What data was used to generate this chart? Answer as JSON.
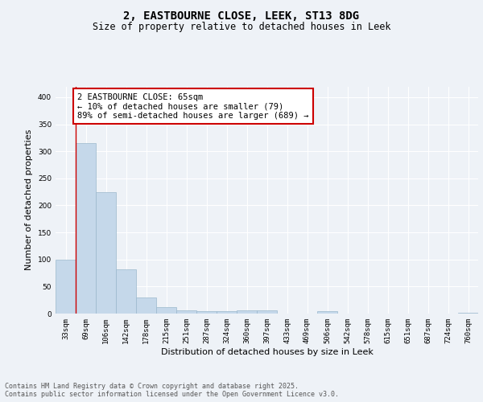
{
  "title_line1": "2, EASTBOURNE CLOSE, LEEK, ST13 8DG",
  "title_line2": "Size of property relative to detached houses in Leek",
  "xlabel": "Distribution of detached houses by size in Leek",
  "ylabel": "Number of detached properties",
  "categories": [
    "33sqm",
    "69sqm",
    "106sqm",
    "142sqm",
    "178sqm",
    "215sqm",
    "251sqm",
    "287sqm",
    "324sqm",
    "360sqm",
    "397sqm",
    "433sqm",
    "469sqm",
    "506sqm",
    "542sqm",
    "578sqm",
    "615sqm",
    "651sqm",
    "687sqm",
    "724sqm",
    "760sqm"
  ],
  "values": [
    100,
    315,
    225,
    82,
    29,
    12,
    6,
    4,
    4,
    6,
    6,
    0,
    0,
    4,
    0,
    0,
    0,
    0,
    0,
    0,
    2
  ],
  "bar_color": "#c5d8ea",
  "bar_edge_color": "#9ab8cc",
  "vline_color": "#cc0000",
  "annotation_text": "2 EASTBOURNE CLOSE: 65sqm\n← 10% of detached houses are smaller (79)\n89% of semi-detached houses are larger (689) →",
  "annotation_box_color": "#ffffff",
  "annotation_edge_color": "#cc0000",
  "ylim": [
    0,
    420
  ],
  "yticks": [
    0,
    50,
    100,
    150,
    200,
    250,
    300,
    350,
    400
  ],
  "footer_text": "Contains HM Land Registry data © Crown copyright and database right 2025.\nContains public sector information licensed under the Open Government Licence v3.0.",
  "background_color": "#eef2f7",
  "plot_bg_color": "#eef2f7",
  "grid_color": "#ffffff",
  "title_fontsize": 10,
  "subtitle_fontsize": 8.5,
  "label_fontsize": 8,
  "tick_fontsize": 6.5,
  "annotation_fontsize": 7.5,
  "footer_fontsize": 6,
  "ylabel_fontsize": 8
}
